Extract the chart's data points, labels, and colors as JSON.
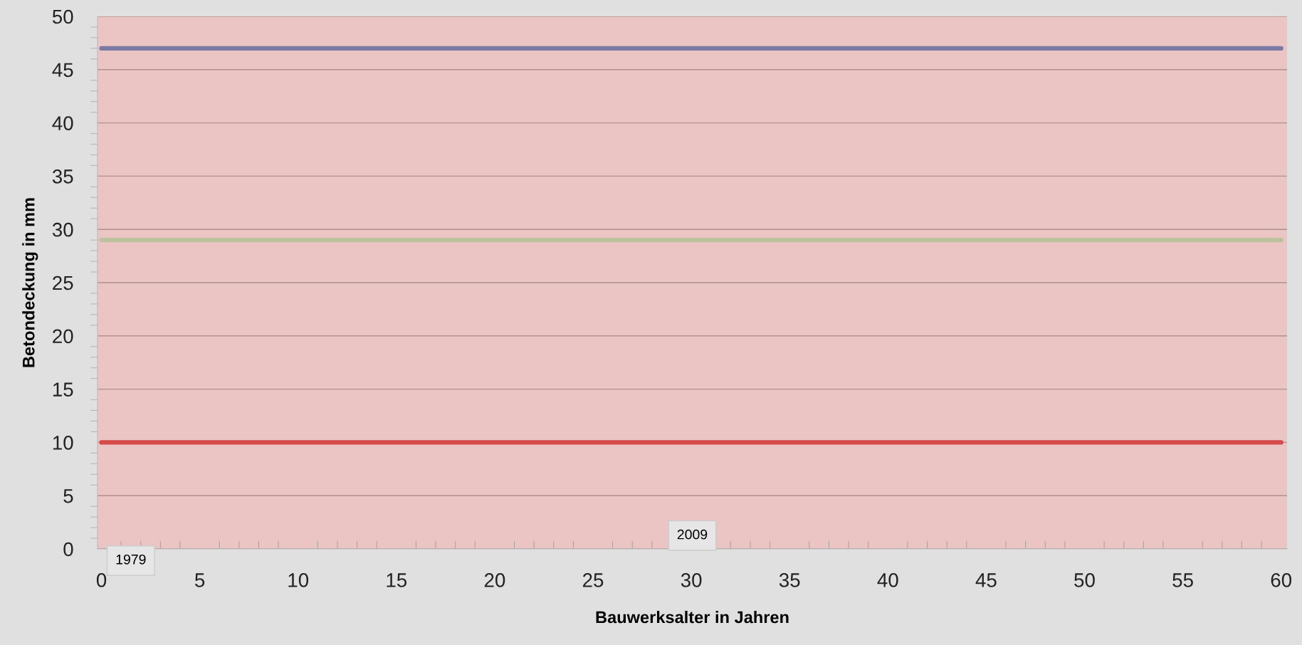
{
  "chart_data": {
    "type": "line",
    "xlabel": "Bauwerksalter in Jahren",
    "ylabel": "Betondeckung in mm",
    "xlim": [
      -0.2,
      60.3
    ],
    "xticks": [
      0,
      5,
      10,
      15,
      20,
      25,
      30,
      35,
      40,
      45,
      50,
      55,
      60
    ],
    "ylim": [
      0,
      50
    ],
    "yticks": [
      0,
      5,
      10,
      15,
      20,
      25,
      30,
      35,
      40,
      45,
      50
    ],
    "grid": "y",
    "marker": "none",
    "line_style": "solid",
    "series": [
      {
        "color": "#7b7aa4",
        "values": [
          47,
          47
        ]
      },
      {
        "color": "#bcc29e",
        "values": [
          29,
          29
        ]
      },
      {
        "color": "#d64a4a",
        "values": [
          10,
          10
        ]
      }
    ],
    "x": [
      0,
      60
    ],
    "annotations": [
      "1979",
      "2009"
    ]
  }
}
